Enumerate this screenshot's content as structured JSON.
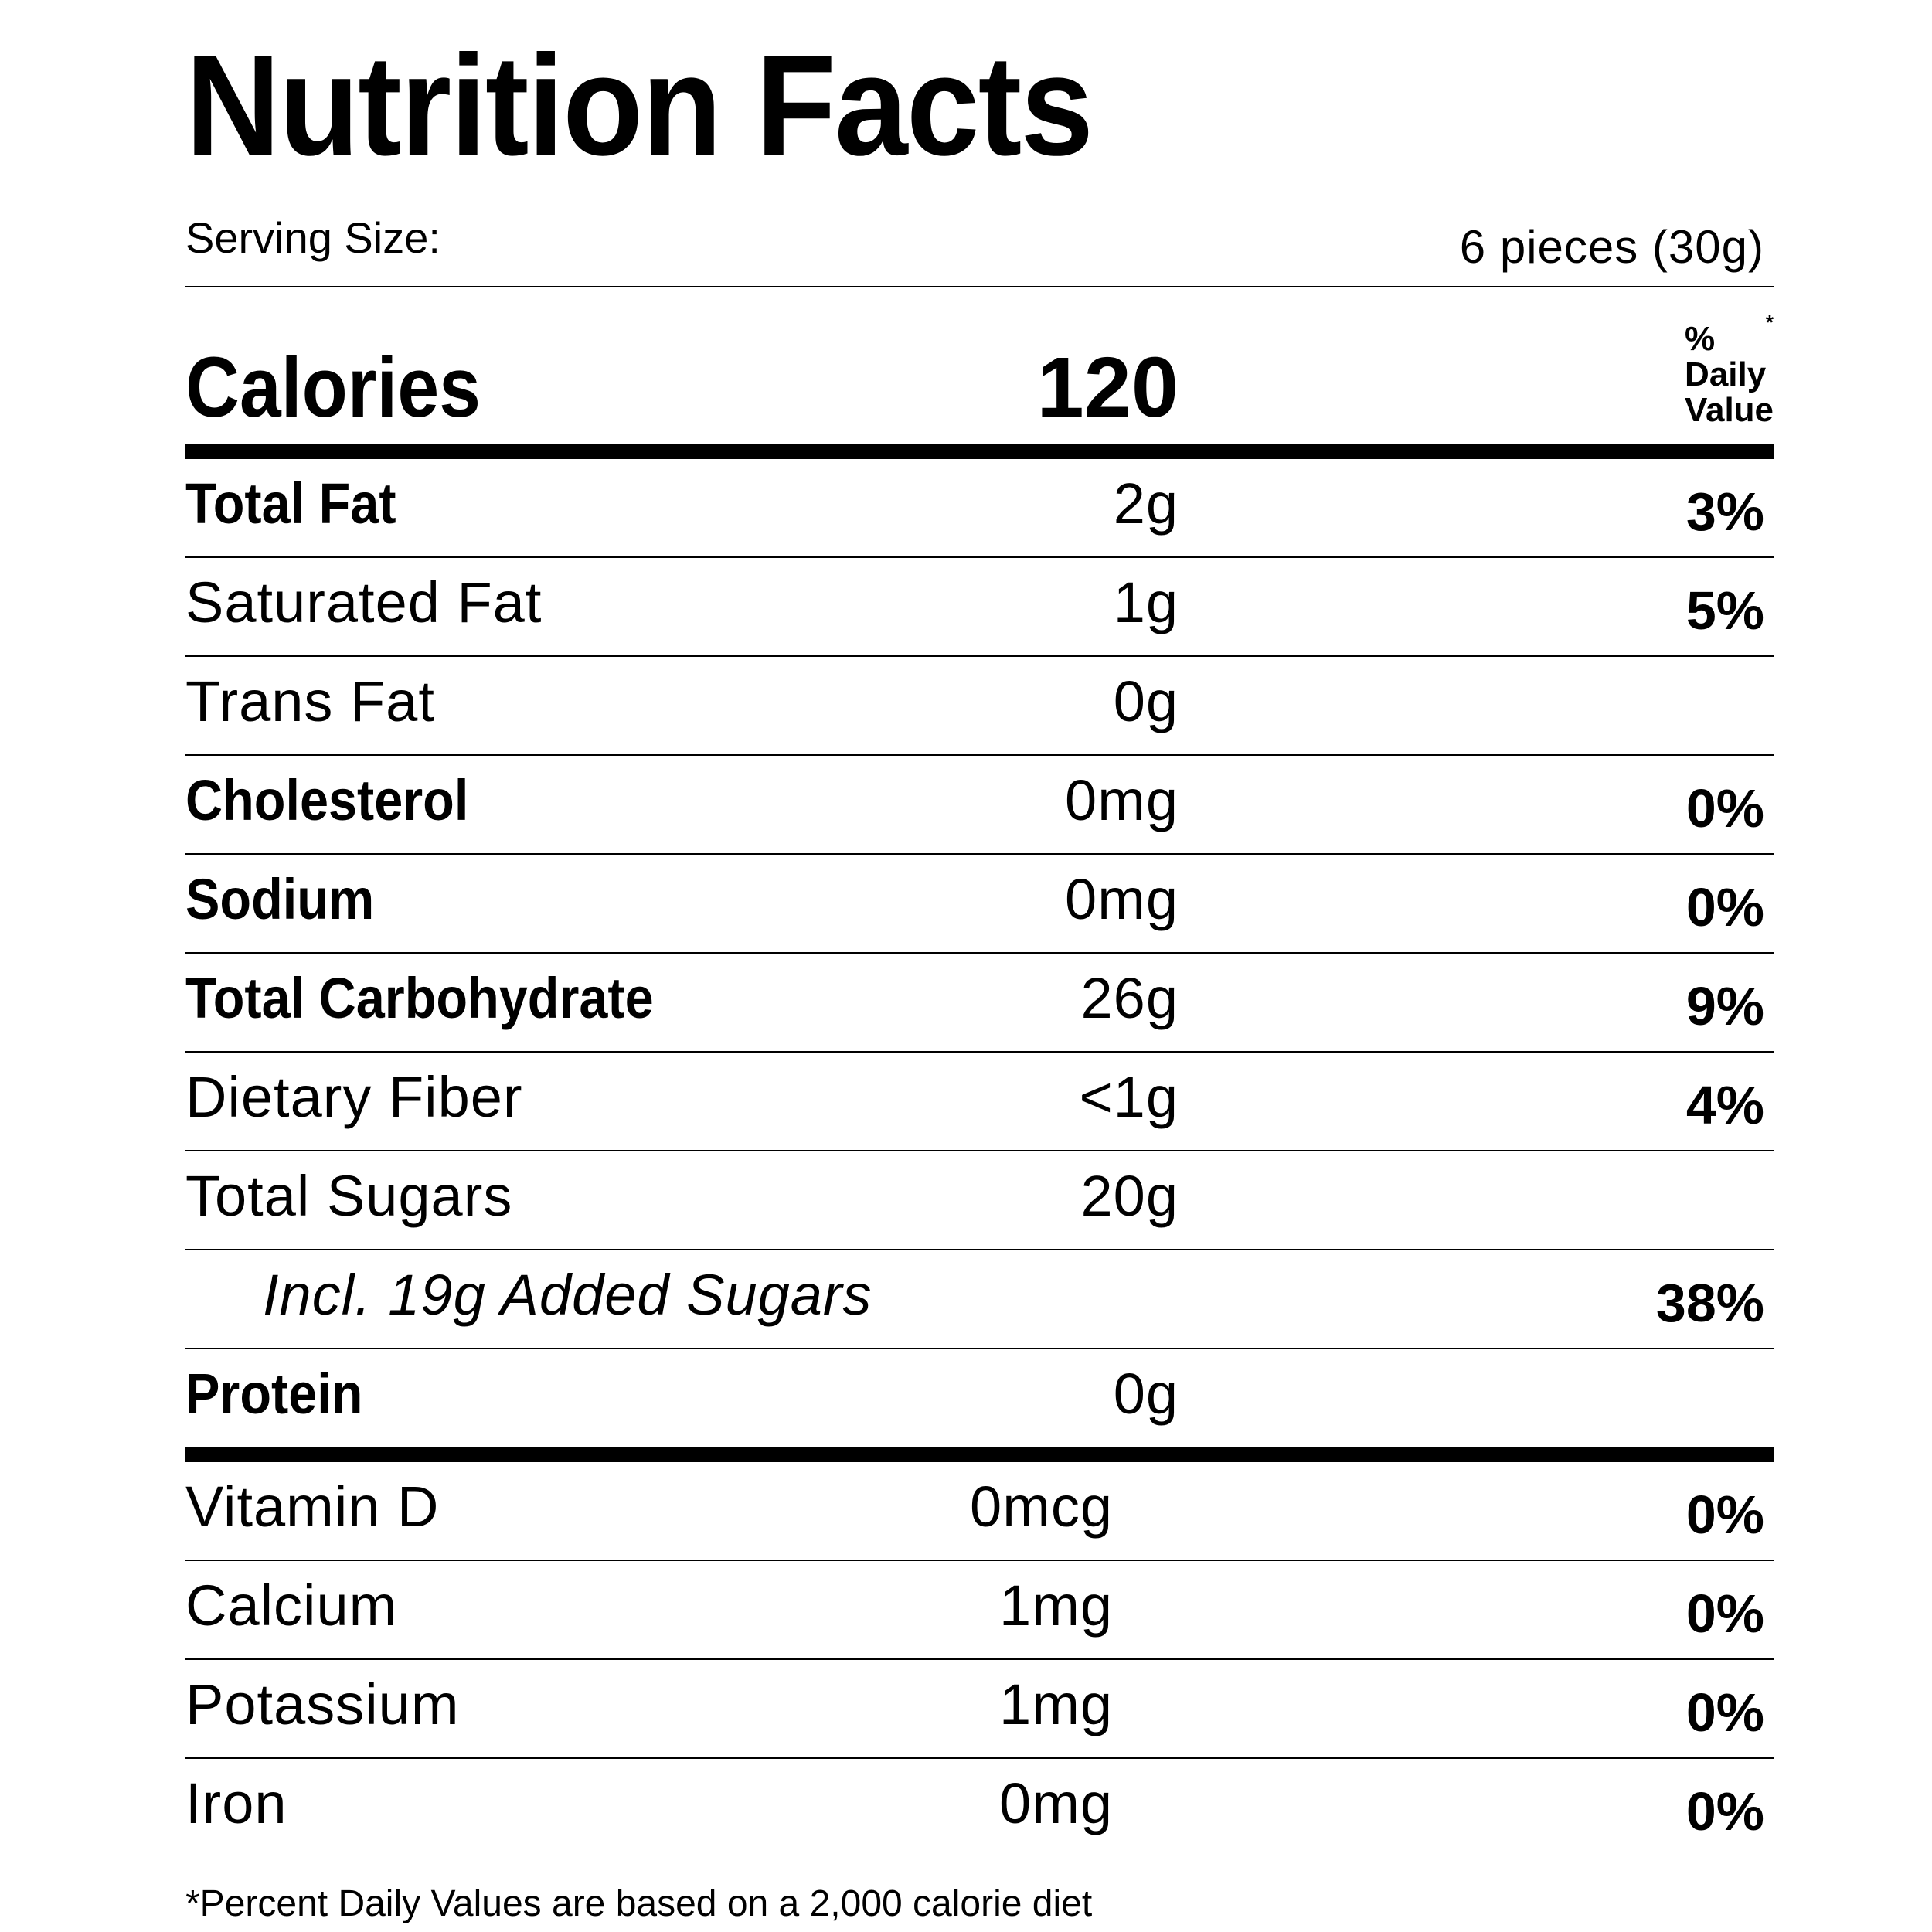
{
  "label": {
    "title": "Nutrition Facts",
    "serving_size_label": "Serving Size:",
    "serving_size_value": "6 pieces (30g)",
    "daily_value_header": "% Daily Value",
    "daily_value_marker": "*",
    "calories_label": "Calories",
    "calories_value": "120",
    "nutrients": [
      {
        "name": "Total Fat",
        "amount": "2g",
        "dv": "3%"
      },
      {
        "name": "Saturated Fat",
        "amount": "1g",
        "dv": "5%"
      },
      {
        "name": "Trans Fat",
        "amount": "0g",
        "dv": ""
      },
      {
        "name": "Cholesterol",
        "amount": "0mg",
        "dv": "0%"
      },
      {
        "name": "Sodium",
        "amount": "0mg",
        "dv": "0%"
      },
      {
        "name": "Total Carbohydrate",
        "amount": "26g",
        "dv": "9%"
      },
      {
        "name": "Dietary Fiber",
        "amount": "<1g",
        "dv": "4%"
      },
      {
        "name": "Total Sugars",
        "amount": "20g",
        "dv": ""
      },
      {
        "name": "Incl. 19g Added Sugars",
        "amount": "",
        "dv": "38%"
      },
      {
        "name": "Protein",
        "amount": "0g",
        "dv": ""
      }
    ],
    "vitamins": [
      {
        "name": "Vitamin D",
        "amount": "0mcg",
        "dv": "0%"
      },
      {
        "name": "Calcium",
        "amount": "1mg",
        "dv": "0%"
      },
      {
        "name": "Potassium",
        "amount": "1mg",
        "dv": "0%"
      },
      {
        "name": "Iron",
        "amount": "0mg",
        "dv": "0%"
      }
    ],
    "footnote": "*Percent Daily Values are based on a 2,000 calorie diet"
  }
}
